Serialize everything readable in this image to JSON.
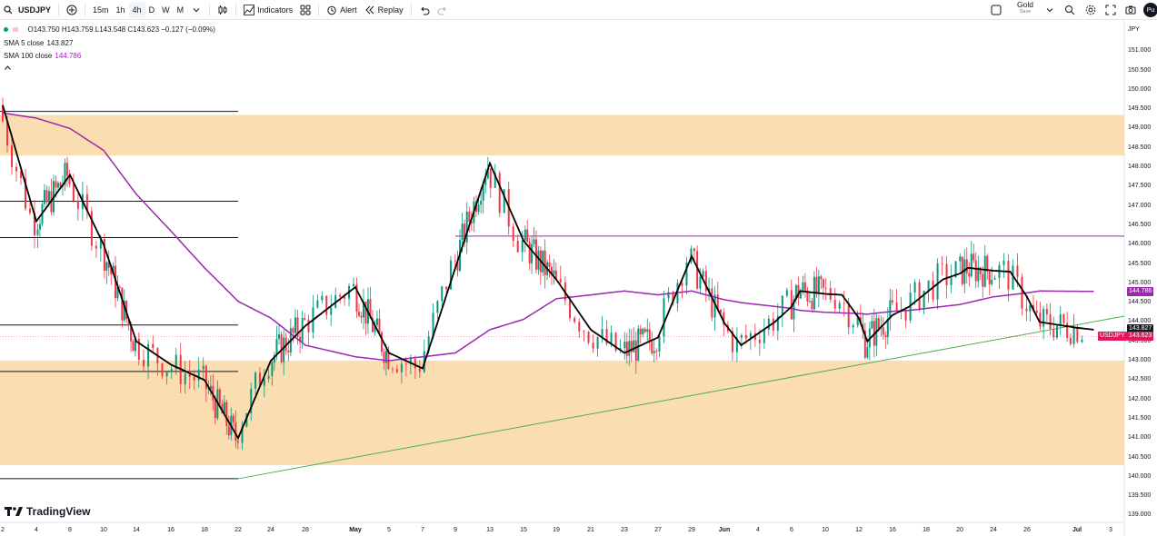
{
  "toolbar": {
    "symbol": "USDJPY",
    "intervals": [
      "15m",
      "1h",
      "4h",
      "D",
      "W",
      "M"
    ],
    "active_interval": "4h",
    "indicators_label": "Indicators",
    "alert_label": "Alert",
    "replay_label": "Replay",
    "gold_label": "Gold",
    "save_label": "Save",
    "avatar_initials": "Pu"
  },
  "legend": {
    "ohlc": "O143.750  H143.759  L143.548  C143.623  −0.127  (−0.09%)",
    "sma5_label": "SMA 5 close",
    "sma5_value": "143.827",
    "sma100_label": "SMA 100 close",
    "sma100_value": "144.786"
  },
  "price_axis": {
    "currency": "JPY",
    "labels": [
      "151.000",
      "150.500",
      "150.000",
      "149.500",
      "149.000",
      "148.500",
      "148.000",
      "147.500",
      "147.000",
      "146.500",
      "146.000",
      "145.500",
      "145.000",
      "144.500",
      "144.000",
      "143.500",
      "143.000",
      "142.500",
      "142.000",
      "141.500",
      "141.000",
      "140.500",
      "140.000",
      "139.500",
      "139.000"
    ],
    "sma100_tag": "144.786",
    "sma5_tag": "143.827",
    "price_tag": "143.623",
    "ticker_tag": "USDJPY"
  },
  "time_axis": {
    "labels": [
      "2",
      "4",
      "8",
      "10",
      "14",
      "16",
      "18",
      "22",
      "24",
      "28",
      "May",
      "5",
      "7",
      "9",
      "13",
      "15",
      "19",
      "21",
      "23",
      "27",
      "29",
      "Jun",
      "4",
      "6",
      "10",
      "12",
      "16",
      "18",
      "20",
      "24",
      "26",
      "Jul",
      "3"
    ],
    "bold_labels": [
      "May",
      "Jun",
      "Jul"
    ]
  },
  "branding": {
    "logo_text": "TradingView"
  },
  "colors": {
    "up": "#089981",
    "down": "#f23645",
    "sma5": "#000000",
    "sma100": "#9c27b0",
    "zone": "#f9d9a8",
    "trendline": "#4caf50",
    "ticker_tag": "#e8135f"
  },
  "chart_data": {
    "type": "line",
    "symbol": "USDJPY",
    "interval": "4h",
    "y_unit": "JPY",
    "ylim": [
      139,
      151.3
    ],
    "series": [
      {
        "name": "SMA 5 close",
        "x": [
          "Apr 2",
          "Apr 4",
          "Apr 8",
          "Apr 10",
          "Apr 14",
          "Apr 16",
          "Apr 18",
          "Apr 22",
          "Apr 24",
          "Apr 28",
          "May 1",
          "May 5",
          "May 7",
          "May 9",
          "May 13",
          "May 15",
          "May 19",
          "May 21",
          "May 23",
          "May 27",
          "May 29",
          "Jun 2",
          "Jun 4",
          "Jun 6",
          "Jun 10",
          "Jun 12",
          "Jun 16",
          "Jun 18",
          "Jun 20",
          "Jun 24",
          "Jun 26",
          "Jun 30"
        ],
        "values": [
          149.6,
          146.6,
          147.8,
          146.0,
          143.5,
          142.9,
          142.5,
          141.0,
          143.0,
          143.9,
          144.9,
          143.2,
          142.8,
          145.4,
          148.1,
          146.1,
          145.1,
          143.8,
          143.2,
          143.6,
          145.7,
          143.4,
          144.0,
          144.8,
          144.7,
          143.5,
          144.4,
          145.1,
          145.4,
          145.3,
          144.0,
          143.8
        ]
      },
      {
        "name": "SMA 100 close",
        "x": [
          "Apr 2",
          "Apr 8",
          "Apr 14",
          "Apr 18",
          "Apr 24",
          "Apr 28",
          "May 1",
          "May 5",
          "May 9",
          "May 13",
          "May 19",
          "May 23",
          "May 27",
          "May 29",
          "Jun 2",
          "Jun 6",
          "Jun 12",
          "Jun 16",
          "Jun 20",
          "Jun 24",
          "Jun 26",
          "Jun 30"
        ],
        "values": [
          149.4,
          149.0,
          147.3,
          145.4,
          144.1,
          143.4,
          143.1,
          143.0,
          143.2,
          143.8,
          144.6,
          144.8,
          144.7,
          144.8,
          144.5,
          144.3,
          144.2,
          144.3,
          144.5,
          144.7,
          144.8,
          144.79
        ]
      }
    ],
    "zones": [
      [
        148.3,
        149.35
      ],
      [
        140.3,
        143.0
      ]
    ],
    "horizontal_levels": [
      149.44,
      147.12,
      146.18,
      143.92,
      142.72,
      139.95
    ],
    "resistance_line": 146.22,
    "trendline": {
      "from": [
        "Apr 22",
        139.95
      ],
      "to": [
        "Jul 1",
        144.15
      ]
    },
    "last_close": 143.623
  }
}
